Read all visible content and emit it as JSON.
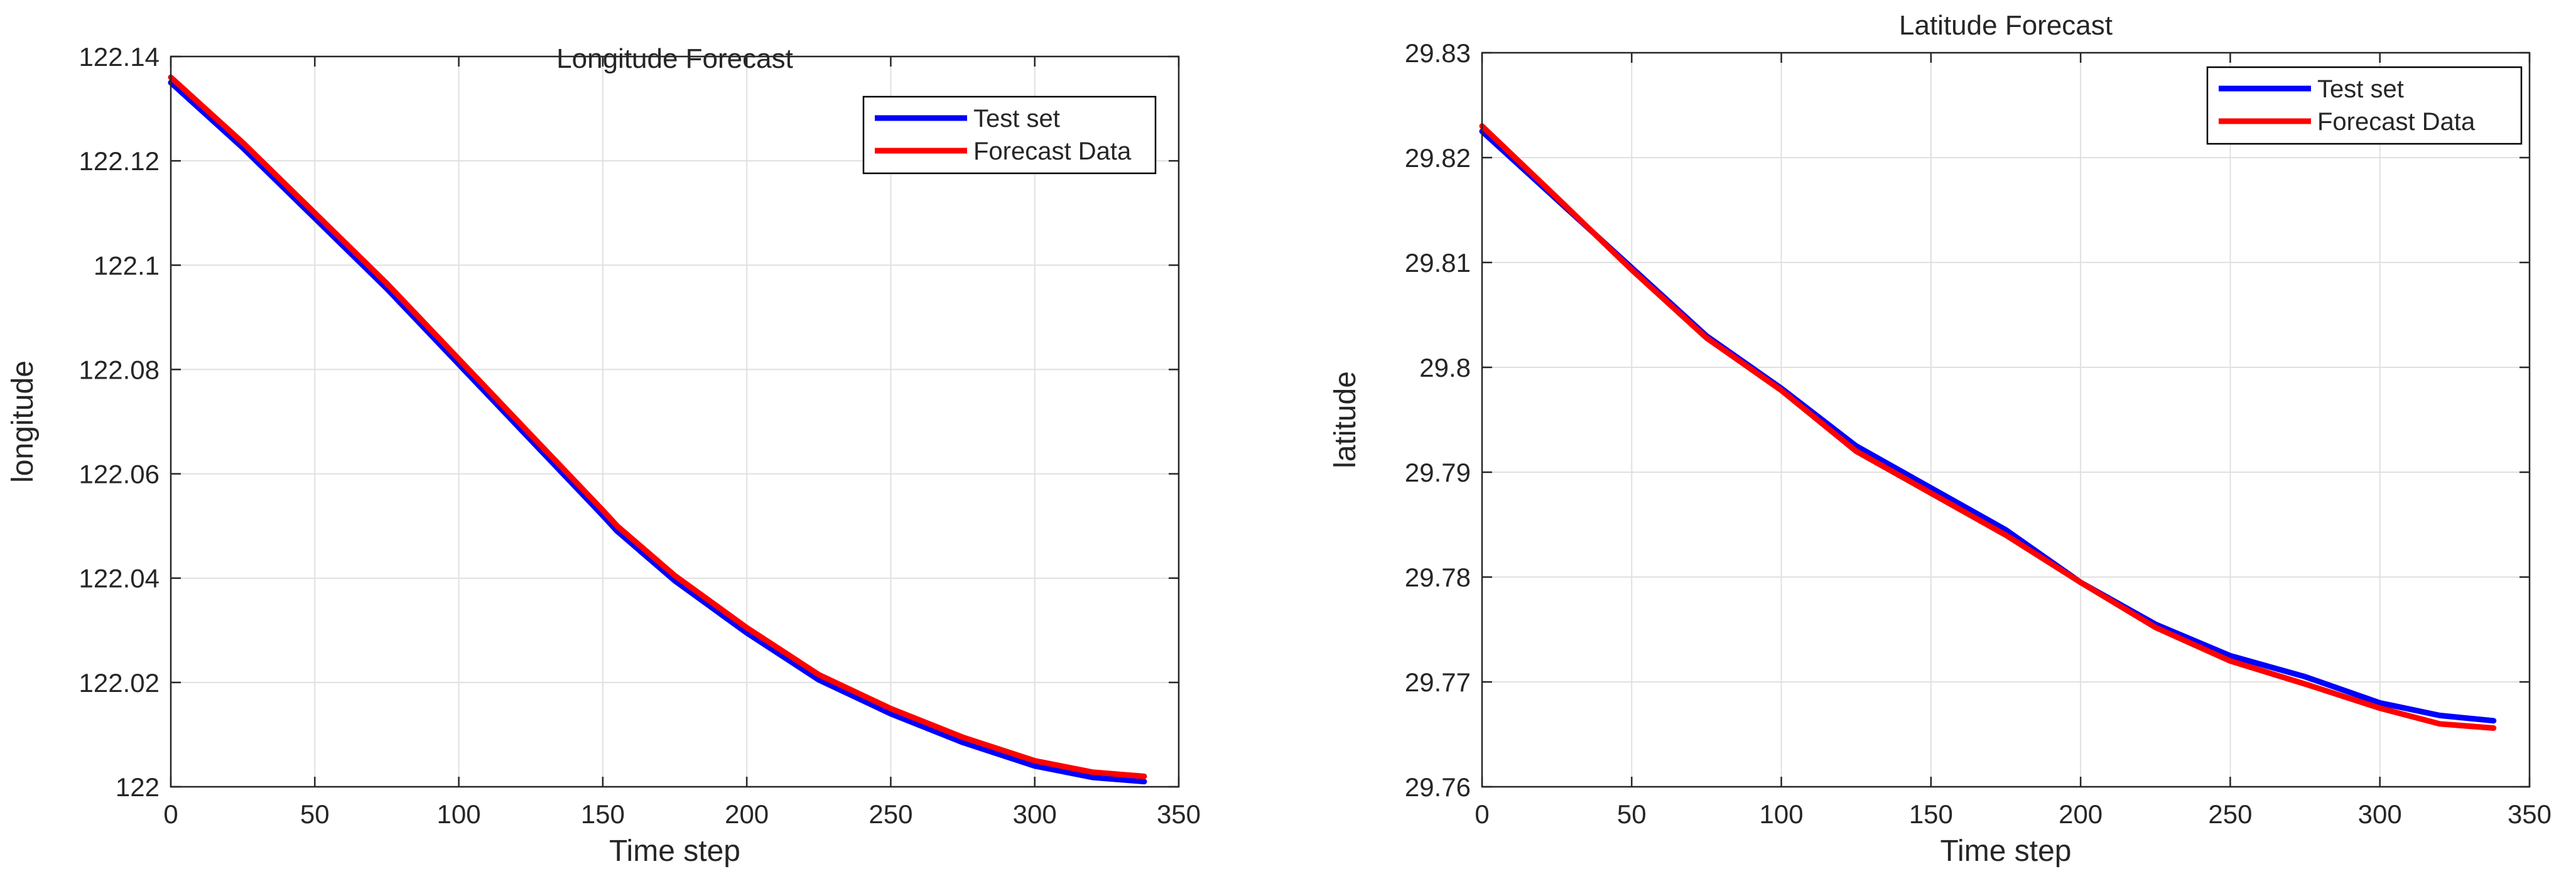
{
  "colors": {
    "test_set": "#0000ff",
    "forecast": "#ff0000",
    "grid": "#e0e0e0",
    "axes": "#262626",
    "background": "#ffffff"
  },
  "chart_data": [
    {
      "id": "longitude",
      "type": "line",
      "title": "Longitude Forecast",
      "xlabel": "Time step",
      "ylabel": "longitude",
      "xlim": [
        0,
        350
      ],
      "ylim": [
        122,
        122.14
      ],
      "xticks": [
        0,
        50,
        100,
        150,
        200,
        250,
        300,
        350
      ],
      "xtick_labels": [
        "0",
        "50",
        "100",
        "150",
        "200",
        "250",
        "300",
        "350"
      ],
      "yticks": [
        122,
        122.02,
        122.04,
        122.06,
        122.08,
        122.1,
        122.12,
        122.14
      ],
      "ytick_labels": [
        "122",
        "122.02",
        "122.04",
        "122.06",
        "122.08",
        "122.1",
        "122.12",
        "122.14"
      ],
      "grid": true,
      "legend_position": "top-right",
      "series": [
        {
          "name": "Test set",
          "color": "#0000ff",
          "x": [
            0,
            25,
            50,
            75,
            100,
            125,
            150,
            155,
            175,
            200,
            225,
            250,
            275,
            300,
            320,
            338
          ],
          "y": [
            122.135,
            122.1225,
            122.109,
            122.0955,
            122.081,
            122.0665,
            122.052,
            122.049,
            122.0395,
            122.0295,
            122.0205,
            122.014,
            122.0085,
            122.004,
            122.0018,
            122.001
          ]
        },
        {
          "name": "Forecast Data",
          "color": "#ff0000",
          "x": [
            0,
            25,
            50,
            75,
            100,
            125,
            150,
            155,
            175,
            200,
            225,
            250,
            275,
            300,
            320,
            338
          ],
          "y": [
            122.136,
            122.1235,
            122.11,
            122.0965,
            122.082,
            122.0675,
            122.053,
            122.05,
            122.0405,
            122.0305,
            122.0215,
            122.015,
            122.0095,
            122.005,
            122.0028,
            122.002
          ]
        }
      ]
    },
    {
      "id": "latitude",
      "type": "line",
      "title": "Latitude Forecast",
      "xlabel": "Time step",
      "ylabel": "latitude",
      "xlim": [
        0,
        350
      ],
      "ylim": [
        29.76,
        29.83
      ],
      "xticks": [
        0,
        50,
        100,
        150,
        200,
        250,
        300,
        350
      ],
      "xtick_labels": [
        "0",
        "50",
        "100",
        "150",
        "200",
        "250",
        "300",
        "350"
      ],
      "yticks": [
        29.76,
        29.77,
        29.78,
        29.79,
        29.8,
        29.81,
        29.82,
        29.83
      ],
      "ytick_labels": [
        "29.76",
        "29.77",
        "29.78",
        "29.79",
        "29.8",
        "29.81",
        "29.82",
        "29.83"
      ],
      "grid": true,
      "legend_position": "top-right",
      "series": [
        {
          "name": "Test set",
          "color": "#0000ff",
          "x": [
            0,
            25,
            50,
            75,
            100,
            125,
            150,
            175,
            200,
            225,
            250,
            275,
            300,
            320,
            338
          ],
          "y": [
            29.8225,
            29.816,
            29.8095,
            29.803,
            29.798,
            29.7925,
            29.7885,
            29.7845,
            29.7795,
            29.7755,
            29.7725,
            29.7705,
            29.768,
            29.7668,
            29.7663
          ]
        },
        {
          "name": "Forecast Data",
          "color": "#ff0000",
          "x": [
            0,
            25,
            50,
            75,
            100,
            125,
            150,
            175,
            200,
            225,
            250,
            275,
            300,
            320,
            338
          ],
          "y": [
            29.823,
            29.8162,
            29.8093,
            29.8028,
            29.7978,
            29.792,
            29.788,
            29.784,
            29.7795,
            29.7752,
            29.772,
            29.7698,
            29.7675,
            29.766,
            29.7656
          ]
        }
      ]
    }
  ]
}
